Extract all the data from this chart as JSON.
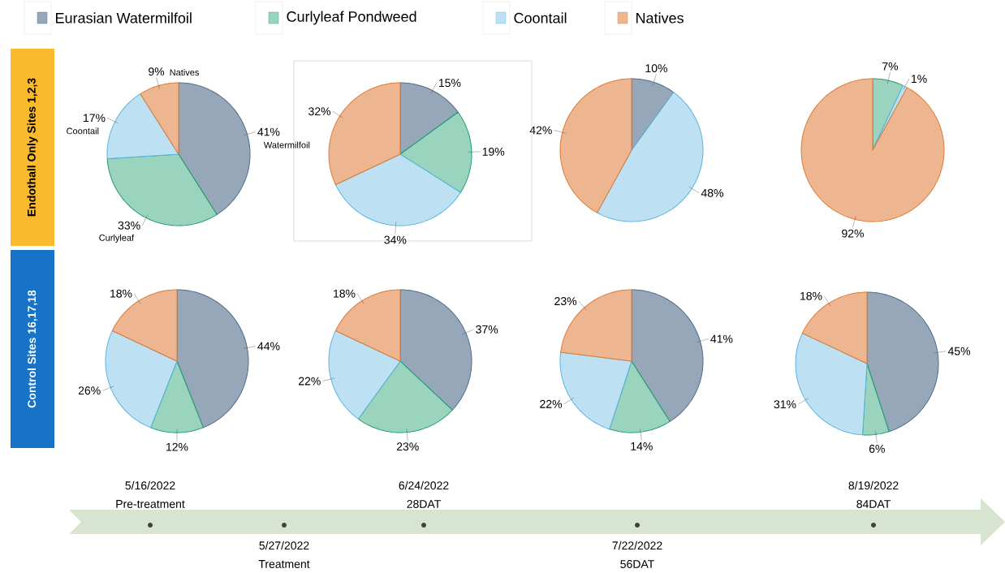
{
  "chart_data": [
    {
      "type": "pie",
      "title": "Endothall Only Sites 1,2,3",
      "legend": "top",
      "categories": [
        "Eurasian Watermilfoil",
        "Curlyleaf Pondweed",
        "Coontail",
        "Natives"
      ],
      "values": [
        41,
        33,
        17,
        9
      ],
      "value_labels": [
        "41%",
        "33%",
        "17%",
        "9%"
      ],
      "colors": [
        "#4f6d8a",
        "#1f9e6e",
        "#5ab4e0",
        "#e07a35"
      ],
      "annotations": [
        "Watermilfoil",
        "Curlyleaf",
        "Coontail",
        "Natives"
      ]
    },
    {
      "type": "pie",
      "categories": [
        null,
        null,
        null,
        null
      ],
      "values": [
        15,
        19,
        34,
        32
      ],
      "value_labels": [
        "15%",
        "19%",
        "34%",
        "32%"
      ],
      "colors": [
        "#4f6d8a",
        "#1f9e6e",
        "#5ab4e0",
        "#e07a35"
      ]
    },
    {
      "type": "pie",
      "categories": [
        null,
        null,
        null,
        null
      ],
      "values": [
        10,
        0,
        48,
        42
      ],
      "value_labels": [
        "10%",
        null,
        "48%",
        "42%"
      ],
      "colors": [
        "#4f6d8a",
        "#1f9e6e",
        "#5ab4e0",
        "#e07a35"
      ]
    },
    {
      "type": "pie",
      "categories": [
        null,
        null,
        null,
        null
      ],
      "values": [
        0,
        7,
        1,
        92
      ],
      "value_labels": [
        null,
        "7%",
        "1%",
        "92%"
      ],
      "colors": [
        "#4f6d8a",
        "#1f9e6e",
        "#5ab4e0",
        "#e07a35"
      ]
    },
    {
      "type": "pie",
      "title": "Control Sites 16,17,18",
      "categories": [
        null,
        null,
        null,
        null
      ],
      "values": [
        44,
        12,
        26,
        18
      ],
      "value_labels": [
        "44%",
        "12%",
        "26%",
        "18%"
      ],
      "colors": [
        "#4f6d8a",
        "#1f9e6e",
        "#5ab4e0",
        "#e07a35"
      ]
    },
    {
      "type": "pie",
      "categories": [
        null,
        null,
        null,
        null
      ],
      "values": [
        37,
        23,
        22,
        18
      ],
      "value_labels": [
        "37%",
        "23%",
        "22%",
        "18%"
      ],
      "colors": [
        "#4f6d8a",
        "#1f9e6e",
        "#5ab4e0",
        "#e07a35"
      ]
    },
    {
      "type": "pie",
      "categories": [
        null,
        null,
        null,
        null
      ],
      "values": [
        41,
        14,
        22,
        23
      ],
      "value_labels": [
        "41%",
        "14%",
        "22%",
        "23%"
      ],
      "colors": [
        "#4f6d8a",
        "#1f9e6e",
        "#5ab4e0",
        "#e07a35"
      ]
    },
    {
      "type": "pie",
      "categories": [
        null,
        null,
        null,
        null
      ],
      "values": [
        45,
        6,
        31,
        18
      ],
      "value_labels": [
        "45%",
        "6%",
        "31%",
        "18%"
      ],
      "colors": [
        "#4f6d8a",
        "#1f9e6e",
        "#5ab4e0",
        "#e07a35"
      ]
    },
    {
      "type": "other",
      "annotations": [
        "5/16/2022",
        "Pre-treatment",
        "5/27/2022",
        "Treatment",
        "6/24/2022",
        "28DAT",
        "7/22/2022",
        "56DAT",
        "8/19/2022",
        "84DAT"
      ]
    }
  ]
}
